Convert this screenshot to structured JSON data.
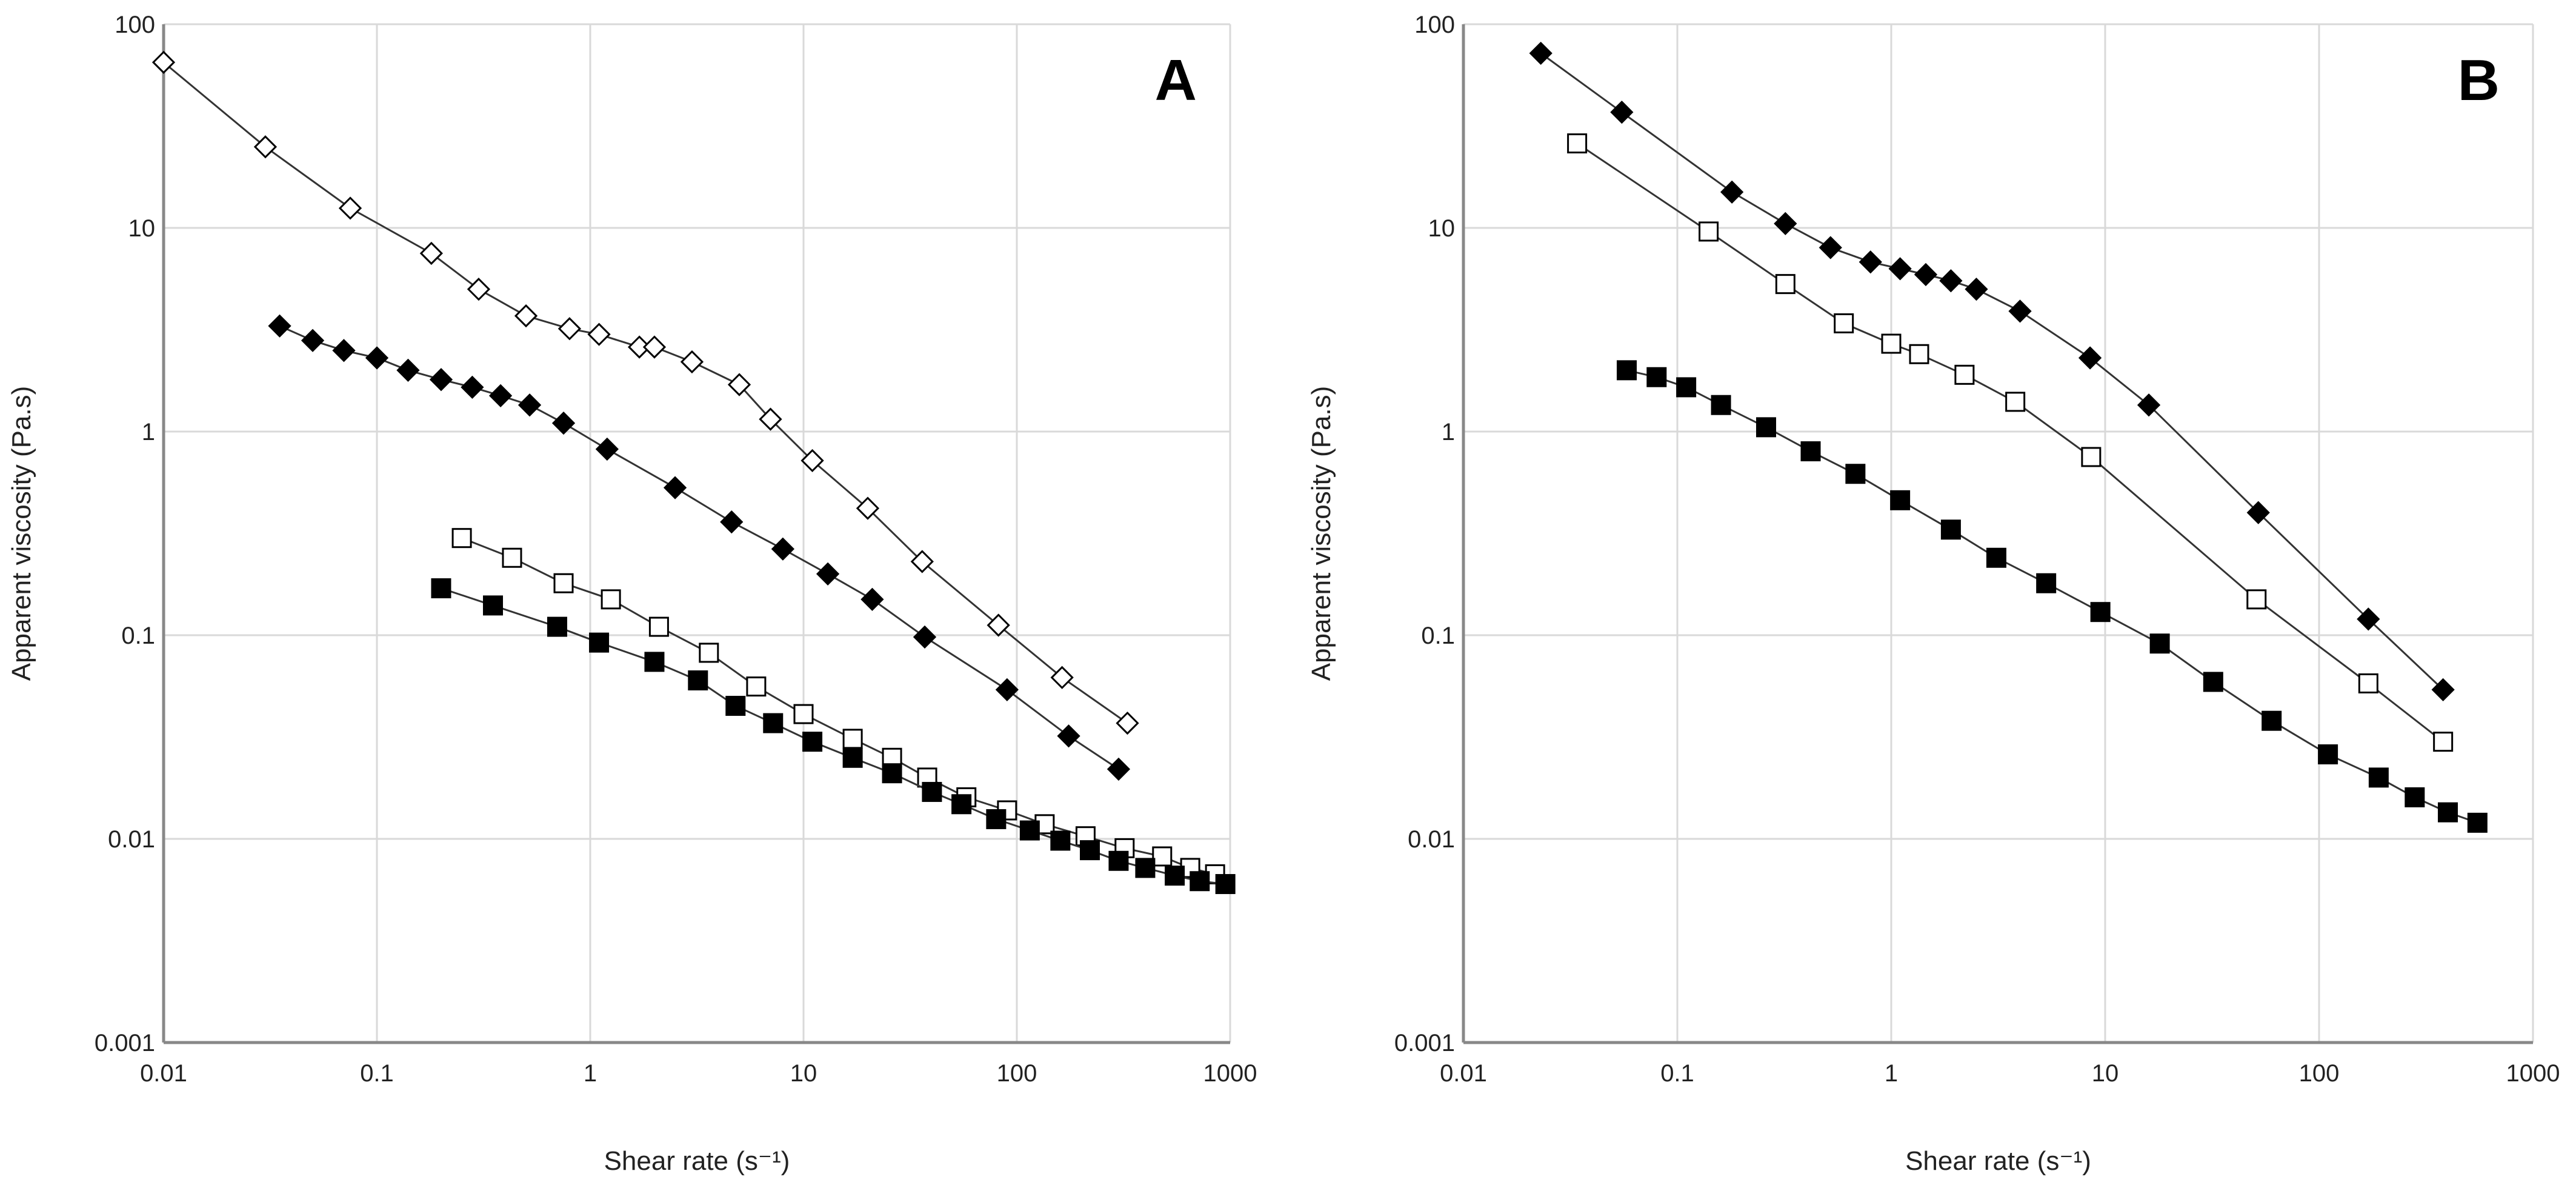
{
  "chart_data": [
    {
      "panel_label": "A",
      "type": "scatter",
      "xscale": "log",
      "yscale": "log",
      "xlabel": "Shear rate (s⁻¹)",
      "ylabel": "Apparent viscosity (Pa.s)",
      "xlim": [
        0.01,
        1000
      ],
      "ylim": [
        0.001,
        100
      ],
      "xticks": [
        "0.01",
        "0.1",
        "1",
        "10",
        "100",
        "1000"
      ],
      "yticks": [
        "0.001",
        "0.01",
        "0.1",
        "1",
        "10",
        "100"
      ],
      "grid": true,
      "series": [
        {
          "name": "open diamond",
          "marker": "diamond",
          "filled": false,
          "x": [
            0.01,
            0.03,
            0.075,
            0.18,
            0.3,
            0.5,
            0.8,
            1.1,
            1.7,
            2,
            3,
            5,
            7,
            11,
            20,
            36,
            82,
            163,
            330
          ],
          "y": [
            65,
            25,
            12.5,
            7.5,
            5,
            3.7,
            3.2,
            3,
            2.6,
            2.6,
            2.2,
            1.7,
            1.15,
            0.72,
            0.42,
            0.23,
            0.112,
            0.062,
            0.037
          ]
        },
        {
          "name": "filled diamond",
          "marker": "diamond",
          "filled": true,
          "x": [
            0.035,
            0.05,
            0.07,
            0.1,
            0.14,
            0.2,
            0.28,
            0.38,
            0.52,
            0.75,
            1.2,
            2.5,
            4.6,
            8,
            13,
            21,
            37,
            90,
            175,
            300
          ],
          "y": [
            3.3,
            2.8,
            2.5,
            2.3,
            2,
            1.8,
            1.65,
            1.5,
            1.35,
            1.1,
            0.82,
            0.53,
            0.36,
            0.265,
            0.2,
            0.15,
            0.098,
            0.054,
            0.032,
            0.022
          ]
        },
        {
          "name": "open square",
          "marker": "square",
          "filled": false,
          "x": [
            0.25,
            0.43,
            0.75,
            1.25,
            2.1,
            3.6,
            6,
            10,
            17,
            26,
            38,
            58,
            90,
            135,
            210,
            320,
            480,
            650,
            850
          ],
          "y": [
            0.3,
            0.24,
            0.18,
            0.15,
            0.11,
            0.082,
            0.056,
            0.041,
            0.031,
            0.025,
            0.02,
            0.016,
            0.0138,
            0.0118,
            0.0103,
            0.009,
            0.0082,
            0.0072,
            0.0067
          ]
        },
        {
          "name": "filled square",
          "marker": "square",
          "filled": true,
          "x": [
            0.2,
            0.35,
            0.7,
            1.1,
            2,
            3.2,
            4.8,
            7.2,
            11,
            17,
            26,
            40,
            55,
            80,
            115,
            160,
            220,
            300,
            400,
            550,
            720,
            950
          ],
          "y": [
            0.17,
            0.14,
            0.11,
            0.092,
            0.074,
            0.06,
            0.045,
            0.037,
            0.03,
            0.025,
            0.021,
            0.017,
            0.0148,
            0.0125,
            0.011,
            0.0098,
            0.0088,
            0.0078,
            0.0072,
            0.0066,
            0.0062,
            0.006
          ]
        }
      ]
    },
    {
      "panel_label": "B",
      "type": "scatter",
      "xscale": "log",
      "yscale": "log",
      "xlabel": "Shear rate (s⁻¹)",
      "ylabel": "Apparent viscosity (Pa.s)",
      "xlim": [
        0.01,
        1000
      ],
      "ylim": [
        0.001,
        100
      ],
      "xticks": [
        "0.01",
        "0.1",
        "1",
        "10",
        "100",
        "1000"
      ],
      "yticks": [
        "0.001",
        "0.01",
        "0.1",
        "1",
        "10",
        "100"
      ],
      "grid": true,
      "series": [
        {
          "name": "filled diamond",
          "marker": "diamond",
          "filled": true,
          "x": [
            0.023,
            0.055,
            0.18,
            0.32,
            0.52,
            0.8,
            1.1,
            1.45,
            1.9,
            2.5,
            4,
            8.5,
            16,
            52,
            170,
            380
          ],
          "y": [
            72,
            37,
            15,
            10.5,
            8,
            6.8,
            6.3,
            5.9,
            5.5,
            5,
            3.9,
            2.3,
            1.35,
            0.4,
            0.12,
            0.054
          ]
        },
        {
          "name": "open square",
          "marker": "square",
          "filled": false,
          "x": [
            0.034,
            0.14,
            0.32,
            0.6,
            1,
            1.35,
            2.2,
            3.8,
            8.6,
            51,
            170,
            380
          ],
          "y": [
            26,
            9.6,
            5.3,
            3.4,
            2.7,
            2.4,
            1.9,
            1.4,
            0.75,
            0.15,
            0.058,
            0.03
          ]
        },
        {
          "name": "filled square",
          "marker": "square",
          "filled": true,
          "x": [
            0.058,
            0.08,
            0.11,
            0.16,
            0.26,
            0.42,
            0.68,
            1.1,
            1.9,
            3.1,
            5.3,
            9.5,
            18,
            32,
            60,
            110,
            190,
            280,
            400,
            550
          ],
          "y": [
            2,
            1.85,
            1.65,
            1.35,
            1.05,
            0.8,
            0.62,
            0.46,
            0.33,
            0.24,
            0.18,
            0.13,
            0.091,
            0.059,
            0.038,
            0.026,
            0.02,
            0.016,
            0.0135,
            0.012
          ]
        }
      ]
    }
  ]
}
